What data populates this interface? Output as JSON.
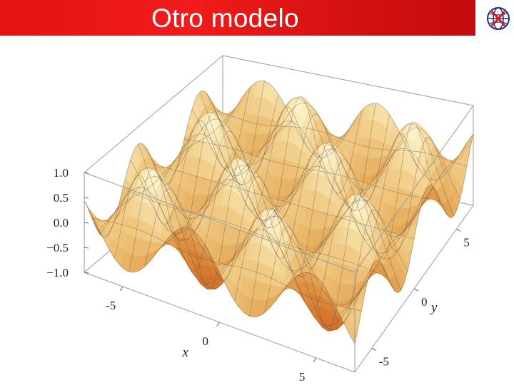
{
  "slide": {
    "title": "Otro modelo"
  },
  "colors": {
    "title_bar": "#e21414",
    "title_text": "#ffffff",
    "surface_light": "#fff6cc",
    "surface_dark": "#d0502a"
  },
  "logo": {
    "icon": "globe-logo-icon"
  },
  "chart_data": {
    "type": "surface3d",
    "function": "sin(x)*sin(y)",
    "xlabel": "x",
    "ylabel": "y",
    "xlim": [
      -7,
      7
    ],
    "ylim": [
      -7,
      7
    ],
    "zlim": [
      -1,
      1
    ],
    "x_ticks": [
      "-5",
      "0",
      "5"
    ],
    "y_ticks": [
      "-5",
      "0",
      "5"
    ],
    "z_ticks": [
      "1.0",
      "0.5",
      "0.0",
      "−0.5",
      "−1.0"
    ],
    "mesh": "on",
    "bounding_box": "on"
  }
}
